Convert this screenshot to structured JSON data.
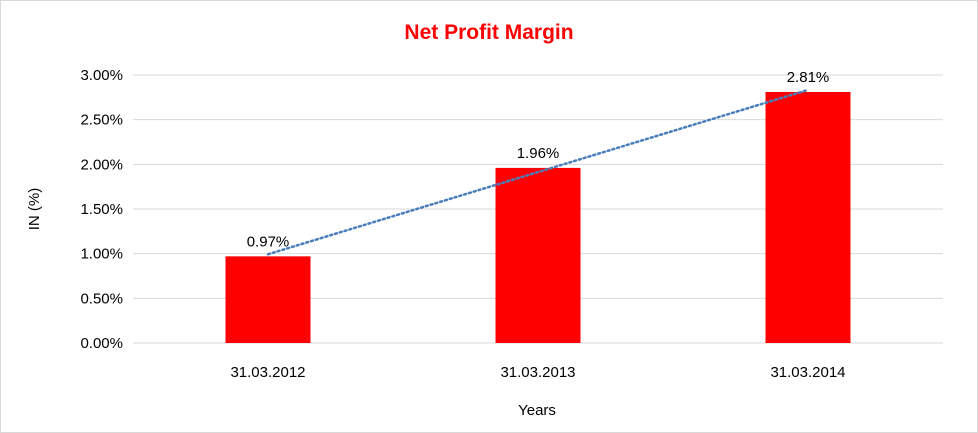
{
  "chart_data": {
    "type": "bar",
    "title": "Net Profit Margin",
    "xlabel": "Years",
    "ylabel": "IN (%)",
    "categories": [
      "31.03.2012",
      "31.03.2013",
      "31.03.2014"
    ],
    "values": [
      0.97,
      1.96,
      2.81
    ],
    "data_labels": [
      "0.97%",
      "1.96%",
      "2.81%"
    ],
    "ylim": [
      0,
      3
    ],
    "yticks": [
      0,
      0.5,
      1,
      1.5,
      2,
      2.5,
      3
    ],
    "ytick_labels": [
      "0.00%",
      "0.50%",
      "1.00%",
      "1.50%",
      "2.00%",
      "2.50%",
      "3.00%"
    ],
    "grid": true,
    "trendline": "linear",
    "colors": {
      "bar": "#ff0000",
      "title": "#ff0000",
      "trendline": "#4a7ebb",
      "grid": "#d9d9d9"
    }
  }
}
